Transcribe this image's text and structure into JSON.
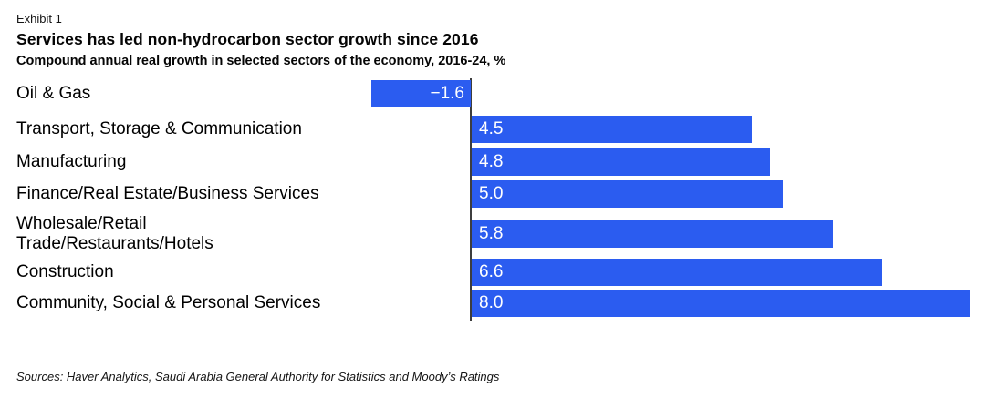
{
  "header": {
    "exhibit": "Exhibit 1",
    "title": "Services has led non-hydrocarbon sector growth since 2016",
    "subtitle": "Compound annual real growth in selected sectors of the economy, 2016-24, %"
  },
  "chart_data": {
    "type": "bar",
    "orientation": "horizontal",
    "title": "Services has led non-hydrocarbon sector growth since 2016",
    "subtitle": "Compound annual real growth in selected sectors of the economy, 2016-24, %",
    "xlabel": "",
    "ylabel": "",
    "xlim": [
      -1.6,
      8.0
    ],
    "grid": false,
    "legend": false,
    "categories": [
      "Oil & Gas",
      "Transport, Storage & Communication",
      "Manufacturing",
      "Finance/Real Estate/Business Services",
      "Wholesale/Retail Trade/Restaurants/Hotels",
      "Construction",
      "Community, Social & Personal Services"
    ],
    "category_lines": [
      [
        "Oil & Gas"
      ],
      [
        "Transport, Storage & Communication"
      ],
      [
        "Manufacturing"
      ],
      [
        "Finance/Real Estate/Business Services"
      ],
      [
        "Wholesale/Retail",
        "Trade/Restaurants/Hotels"
      ],
      [
        "Construction"
      ],
      [
        "Community, Social & Personal Services"
      ]
    ],
    "values": [
      -1.6,
      4.5,
      4.8,
      5.0,
      5.8,
      6.6,
      8.0
    ],
    "value_labels": [
      "−1.6",
      "4.5",
      "4.8",
      "5.0",
      "5.8",
      "6.6",
      "8.0"
    ],
    "data_label_position": "inside end of bar, white text",
    "bar_color": "#2B5CF0",
    "axis_color": "#3D3D3D",
    "label_color": "#000000",
    "value_text_color": "#FFFFFF"
  },
  "footer": {
    "sources": "Sources: Haver Analytics, Saudi Arabia General Authority for Statistics and Moody’s Ratings"
  }
}
